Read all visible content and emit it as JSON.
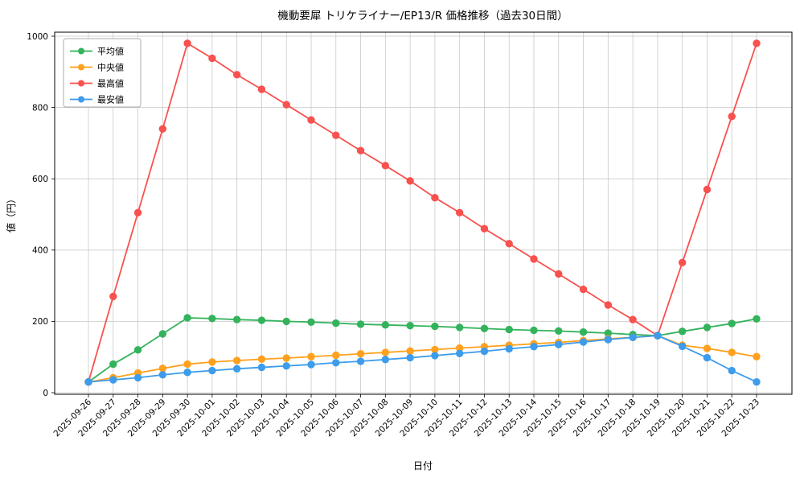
{
  "chart_data": {
    "type": "line",
    "title": "機動要犀 トリケライナー/EP13/R 価格推移（過去30日間）",
    "xlabel": "日付",
    "ylabel": "値（円）",
    "grid": true,
    "legend_position": "upper-left",
    "ylim": [
      0,
      1000
    ],
    "yticks": [
      0,
      200,
      400,
      600,
      800,
      1000
    ],
    "x": [
      "2025-09-26",
      "2025-09-27",
      "2025-09-28",
      "2025-09-29",
      "2025-09-30",
      "2025-10-01",
      "2025-10-02",
      "2025-10-03",
      "2025-10-04",
      "2025-10-05",
      "2025-10-06",
      "2025-10-07",
      "2025-10-08",
      "2025-10-09",
      "2025-10-10",
      "2025-10-11",
      "2025-10-12",
      "2025-10-13",
      "2025-10-14",
      "2025-10-15",
      "2025-10-16",
      "2025-10-17",
      "2025-10-18",
      "2025-10-19",
      "2025-10-20",
      "2025-10-21",
      "2025-10-22",
      "2025-10-23"
    ],
    "series": [
      {
        "name": "平均値",
        "color": "#33b35c",
        "values": [
          30,
          80,
          120,
          165,
          210,
          208,
          205,
          203,
          200,
          198,
          195,
          192,
          190,
          188,
          186,
          183,
          180,
          177,
          175,
          173,
          170,
          167,
          163,
          160,
          172,
          183,
          194,
          207
        ]
      },
      {
        "name": "中央値",
        "color": "#ffa11e",
        "values": [
          30,
          42,
          55,
          68,
          80,
          86,
          90,
          94,
          97,
          101,
          105,
          109,
          113,
          117,
          121,
          125,
          129,
          133,
          137,
          141,
          146,
          151,
          155,
          160,
          133,
          124,
          113,
          101
        ]
      },
      {
        "name": "最高値",
        "color": "#f8514e",
        "values": [
          30,
          270,
          505,
          740,
          980,
          938,
          892,
          851,
          808,
          765,
          722,
          679,
          637,
          594,
          547,
          505,
          460,
          418,
          375,
          333,
          290,
          246,
          205,
          160,
          365,
          570,
          775,
          980
        ]
      },
      {
        "name": "最安値",
        "color": "#3d9ceb",
        "values": [
          30,
          36,
          42,
          50,
          57,
          62,
          67,
          71,
          75,
          79,
          84,
          88,
          93,
          98,
          104,
          110,
          116,
          123,
          129,
          135,
          142,
          149,
          155,
          160,
          130,
          98,
          62,
          30
        ]
      }
    ]
  }
}
